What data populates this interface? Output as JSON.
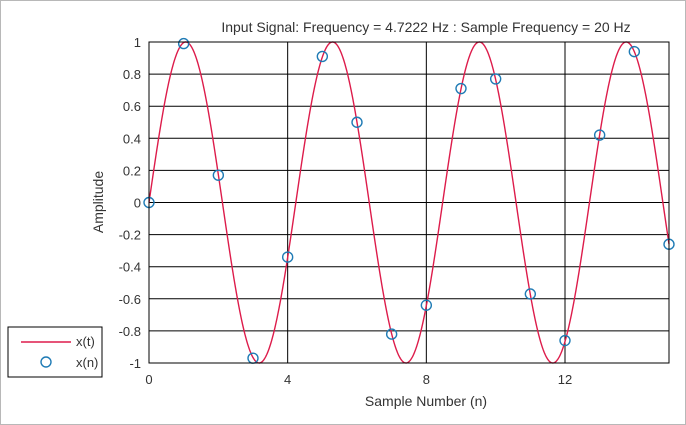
{
  "chart_data": {
    "type": "line",
    "title": "Input Signal: Frequency = 4.7222 Hz : Sample Frequency = 20 Hz",
    "xlabel": "Sample Number (n)",
    "ylabel": "Amplitude",
    "xlim": [
      0,
      15
    ],
    "ylim": [
      -1,
      1
    ],
    "x_ticks": [
      0,
      4,
      8,
      12
    ],
    "x_tick_labels": [
      "0",
      "4",
      "8",
      "12"
    ],
    "y_ticks": [
      -1,
      -0.8,
      -0.6,
      -0.4,
      -0.2,
      0,
      0.2,
      0.4,
      0.6,
      0.8,
      1
    ],
    "y_tick_labels": [
      "-1",
      "-0.8",
      "-0.6",
      "-0.4",
      "-0.2",
      "0",
      "0.2",
      "0.4",
      "0.6",
      "0.8",
      "1"
    ],
    "grid": true,
    "legend_position": "bottom-left",
    "series": [
      {
        "name": "x(t)",
        "style": "continuous-line",
        "color": "#dd1c4b",
        "signal": {
          "function": "sine",
          "frequency_hz": 4.7222,
          "sample_rate_hz": 20,
          "amplitude": 1
        }
      },
      {
        "name": "x(n)",
        "style": "circle-markers",
        "color": "#1f7bb5",
        "x": [
          0,
          1,
          2,
          3,
          4,
          5,
          6,
          7,
          8,
          9,
          10,
          11,
          12,
          13,
          14,
          15
        ],
        "y": [
          0,
          0.99,
          0.17,
          -0.97,
          -0.34,
          0.91,
          0.5,
          -0.82,
          -0.64,
          0.71,
          0.77,
          -0.57,
          -0.86,
          0.42,
          0.94,
          -0.26
        ]
      }
    ]
  }
}
